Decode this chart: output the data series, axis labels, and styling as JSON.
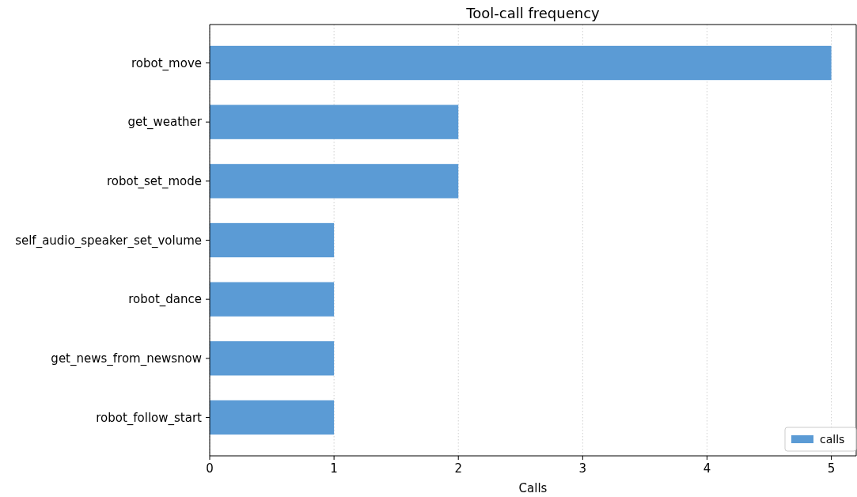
{
  "chart_data": {
    "type": "bar",
    "orientation": "horizontal",
    "title": "Tool-call frequency",
    "xlabel": "Calls",
    "categories": [
      "robot_move",
      "get_weather",
      "robot_set_mode",
      "self_audio_speaker_set_volume",
      "robot_dance",
      "get_news_from_newsnow",
      "robot_follow_start"
    ],
    "series": [
      {
        "name": "calls",
        "color": "#5b9bd5",
        "values": [
          5,
          2,
          2,
          1,
          1,
          1,
          1
        ]
      }
    ],
    "xlim": [
      0,
      5.2
    ],
    "xticks": [
      0,
      1,
      2,
      3,
      4,
      5
    ],
    "grid": "x",
    "legend": "bottom right"
  }
}
